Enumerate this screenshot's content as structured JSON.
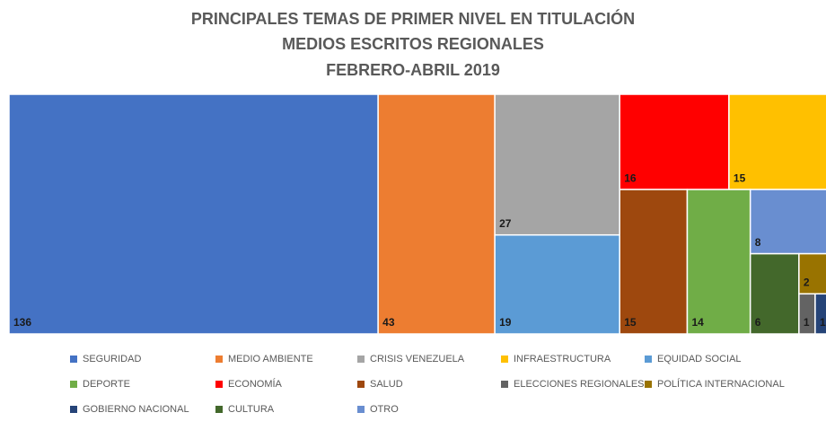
{
  "chart_data": {
    "type": "treemap",
    "title": [
      "PRINCIPALES TEMAS DE PRIMER NIVEL EN TITULACIÓN",
      "MEDIOS ESCRITOS REGIONALES",
      "FEBRERO-ABRIL 2019"
    ],
    "categories": [
      "SEGURIDAD",
      "MEDIO AMBIENTE",
      "CRISIS VENEZUELA",
      "INFRAESTRUCTURA",
      "EQUIDAD SOCIAL",
      "DEPORTE",
      "ECONOMÍA",
      "SALUD",
      "ELECCIONES REGIONALES",
      "POLÍTICA INTERNACIONAL",
      "GOBIERNO NACIONAL",
      "CULTURA",
      "OTRO"
    ],
    "values": [
      136,
      43,
      27,
      15,
      19,
      14,
      16,
      15,
      1,
      2,
      1,
      6,
      8
    ],
    "colors": [
      "#4472c4",
      "#ed7d31",
      "#a5a5a5",
      "#ffc000",
      "#5b9bd5",
      "#70ad47",
      "#ff0000",
      "#9e480e",
      "#636363",
      "#997300",
      "#264478",
      "#43682b",
      "#698ed0"
    ],
    "legend": "bottom"
  }
}
